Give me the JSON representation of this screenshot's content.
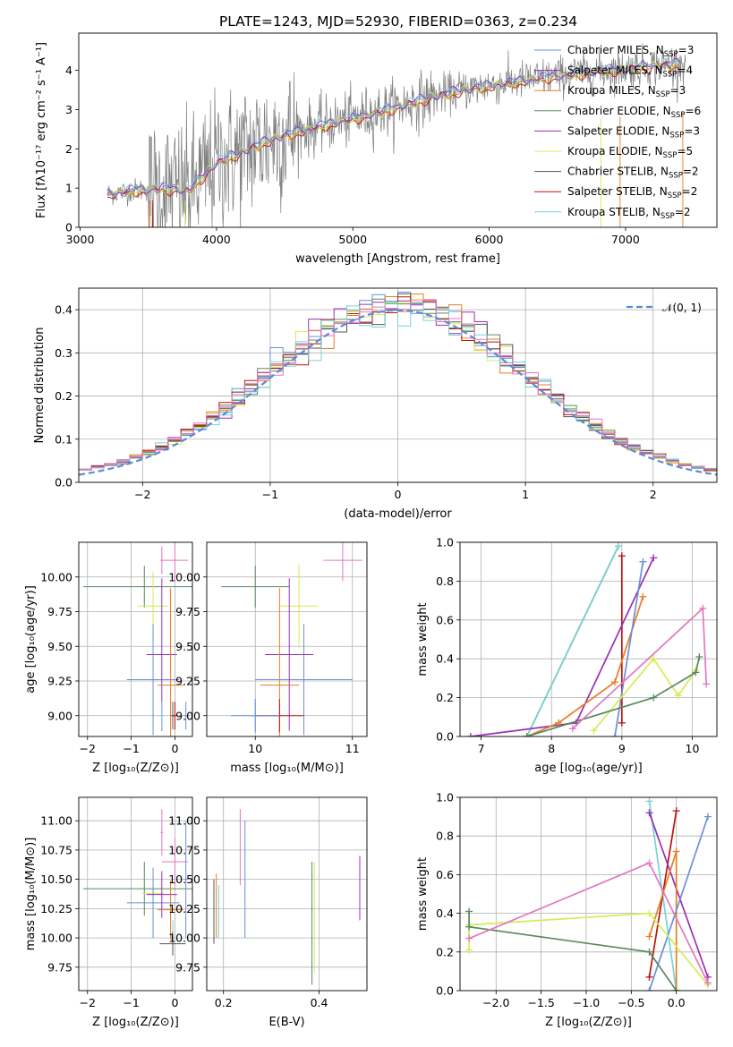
{
  "figure": {
    "title": "PLATE=1243, MJD=52930, FIBERID=0363, z=0.234"
  },
  "colors": {
    "Chabrier MILES": "#6a8fd8",
    "Salpeter MILES": "#9b2fb5",
    "Kroupa MILES": "#e67e22",
    "Chabrier ELODIE": "#5b8a60",
    "Salpeter ELODIE": "#9b2fb5",
    "Kroupa ELODIE": "#d4ec55",
    "Chabrier STELIB": "#555555",
    "Salpeter STELIB": "#b8150e",
    "Kroupa STELIB": "#78d2d6",
    "pink": "#e377c2",
    "data": "#7f7f7f",
    "normal": "#5b8ad8"
  },
  "chart_data": [
    {
      "id": "spectrum",
      "type": "line",
      "title": "PLATE=1243, MJD=52930, FIBERID=0363, z=0.234",
      "xlabel": "wavelength [Angstrom, rest frame]",
      "ylabel": "Flux [fλ10⁻¹⁷ erg cm⁻² s⁻¹ A⁻¹]",
      "xlim": [
        2990,
        7670
      ],
      "ylim": [
        0,
        4.95
      ],
      "xticks": [
        "3000",
        "4000",
        "5000",
        "6000",
        "7000"
      ],
      "yticks": [
        "0",
        "1",
        "2",
        "3",
        "4"
      ],
      "legend_placement": "right",
      "legend": [
        {
          "name": "Chabrier MILES",
          "sub": "SSP",
          "n": "3"
        },
        {
          "name": "Salpeter MILES",
          "sub": "SSP",
          "n": "4"
        },
        {
          "name": "Kroupa MILES",
          "sub": "SSP",
          "n": "3"
        },
        {
          "name": "Chabrier ELODIE",
          "sub": "SSP",
          "n": "6"
        },
        {
          "name": "Salpeter ELODIE",
          "sub": "SSP",
          "n": "3"
        },
        {
          "name": "Kroupa ELODIE",
          "sub": "SSP",
          "n": "5"
        },
        {
          "name": "Chabrier STELIB",
          "sub": "SSP",
          "n": "2"
        },
        {
          "name": "Salpeter STELIB",
          "sub": "SSP",
          "n": "2"
        },
        {
          "name": "Kroupa STELIB",
          "sub": "SSP",
          "n": "2"
        }
      ],
      "model_continuum": {
        "x": [
          3200,
          3400,
          3600,
          3800,
          4000,
          4200,
          4400,
          4600,
          4800,
          5000,
          5200,
          5400,
          5600,
          5800,
          6000,
          6200,
          6400,
          6600,
          6800,
          7000,
          7200,
          7400
        ],
        "y": [
          0.85,
          0.95,
          1.0,
          0.95,
          1.65,
          1.95,
          2.25,
          2.45,
          2.62,
          2.78,
          2.95,
          3.15,
          3.35,
          3.5,
          3.62,
          3.72,
          3.82,
          3.9,
          3.98,
          4.05,
          4.12,
          4.18
        ]
      }
    },
    {
      "id": "residuals",
      "type": "line",
      "xlabel": "(data-model)/error",
      "ylabel": "Normed distribution",
      "xlim": [
        -2.5,
        2.5
      ],
      "ylim": [
        0,
        0.45
      ],
      "xticks": [
        "−2",
        "−1",
        "0",
        "1",
        "2"
      ],
      "yticks": [
        "0.0",
        "0.1",
        "0.2",
        "0.3",
        "0.4"
      ],
      "legend_placement": "top-right",
      "legend": [
        "𝒩(0, 1)"
      ],
      "bin_width": 0.1
    },
    {
      "id": "age-vs-Z",
      "type": "scatter",
      "xlabel": "Z [log₁₀(Z/Z⊙)]",
      "ylabel": "age  [log₁₀(age/yr)]",
      "xlim": [
        -2.2,
        0.4
      ],
      "ylim": [
        8.85,
        10.25
      ],
      "xticks": [
        "−2",
        "−1",
        "0"
      ],
      "yticks": [
        "9.00",
        "9.25",
        "9.50",
        "9.75",
        "10.00"
      ]
    },
    {
      "id": "age-vs-mass",
      "type": "scatter",
      "xlabel": "mass [log₁₀(M/M⊙)]",
      "xlim": [
        9.5,
        11.15
      ],
      "ylim": [
        8.85,
        10.25
      ],
      "xticks": [
        "10",
        "11"
      ],
      "yticks": [
        "9.00",
        "9.25",
        "9.50",
        "9.75",
        "10.00"
      ]
    },
    {
      "id": "weight-vs-age",
      "type": "line",
      "xlabel": "age  [log₁₀(age/yr)]",
      "ylabel": "mass weight",
      "xlim": [
        6.7,
        10.35
      ],
      "ylim": [
        0,
        1.0
      ],
      "xticks": [
        "7",
        "8",
        "9",
        "10"
      ],
      "yticks": [
        "0.0",
        "0.2",
        "0.4",
        "0.6",
        "0.8",
        "1.0"
      ]
    },
    {
      "id": "mass-vs-Z",
      "type": "scatter",
      "xlabel": "Z [log₁₀(Z/Z⊙)]",
      "ylabel": "mass [log₁₀(M/M⊙)]",
      "xlim": [
        -2.2,
        0.4
      ],
      "ylim": [
        9.55,
        11.2
      ],
      "xticks": [
        "−2",
        "−1",
        "0"
      ],
      "yticks": [
        "9.75",
        "10.00",
        "10.25",
        "10.50",
        "10.75",
        "11.00"
      ]
    },
    {
      "id": "mass-vs-ebv",
      "type": "scatter",
      "xlabel": "E(B-V)",
      "xlim": [
        0.165,
        0.5
      ],
      "ylim": [
        9.55,
        11.2
      ],
      "xticks": [
        "0.2",
        "0.4"
      ],
      "yticks": [
        "9.75",
        "10.00",
        "10.25",
        "10.50",
        "10.75",
        "11.00"
      ]
    },
    {
      "id": "weight-vs-Z",
      "type": "line",
      "xlabel": "Z [log₁₀(Z/Z⊙)]",
      "ylabel": "mass weight",
      "xlim": [
        -2.4,
        0.45
      ],
      "ylim": [
        0,
        1.0
      ],
      "xticks": [
        "−2.0",
        "−1.5",
        "−1.0",
        "−0.5",
        "0.0"
      ],
      "yticks": [
        "0.0",
        "0.2",
        "0.4",
        "0.6",
        "0.8",
        "1.0"
      ]
    }
  ]
}
